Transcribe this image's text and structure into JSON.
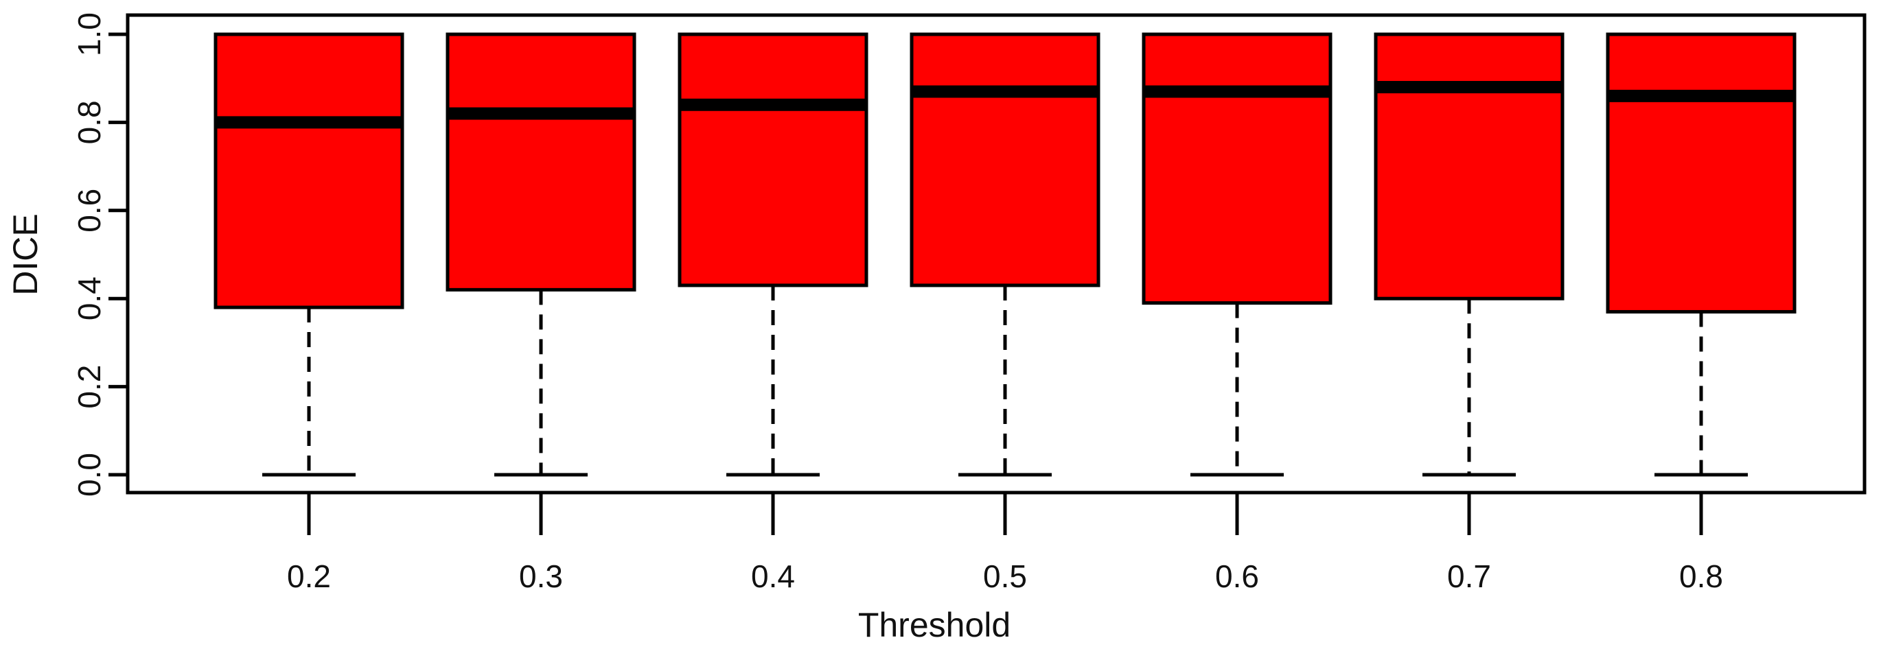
{
  "chart_data": {
    "type": "boxplot",
    "xlabel": "Threshold",
    "ylabel": "DICE",
    "categories": [
      "0.2",
      "0.3",
      "0.4",
      "0.5",
      "0.6",
      "0.7",
      "0.8"
    ],
    "ylim": [
      0,
      1
    ],
    "yticks": [
      "0.0",
      "0.2",
      "0.4",
      "0.6",
      "0.8",
      "1.0"
    ],
    "grid": false,
    "box_color": "#ff0000",
    "boxes": [
      {
        "category": "0.2",
        "whisker_low": 0.0,
        "q1": 0.38,
        "median": 0.8,
        "q3": 1.0,
        "whisker_high": 1.0
      },
      {
        "category": "0.3",
        "whisker_low": 0.0,
        "q1": 0.42,
        "median": 0.82,
        "q3": 1.0,
        "whisker_high": 1.0
      },
      {
        "category": "0.4",
        "whisker_low": 0.0,
        "q1": 0.43,
        "median": 0.84,
        "q3": 1.0,
        "whisker_high": 1.0
      },
      {
        "category": "0.5",
        "whisker_low": 0.0,
        "q1": 0.43,
        "median": 0.87,
        "q3": 1.0,
        "whisker_high": 1.0
      },
      {
        "category": "0.6",
        "whisker_low": 0.0,
        "q1": 0.39,
        "median": 0.87,
        "q3": 1.0,
        "whisker_high": 1.0
      },
      {
        "category": "0.7",
        "whisker_low": 0.0,
        "q1": 0.4,
        "median": 0.88,
        "q3": 1.0,
        "whisker_high": 1.0
      },
      {
        "category": "0.8",
        "whisker_low": 0.0,
        "q1": 0.37,
        "median": 0.86,
        "q3": 1.0,
        "whisker_high": 1.0
      }
    ]
  }
}
